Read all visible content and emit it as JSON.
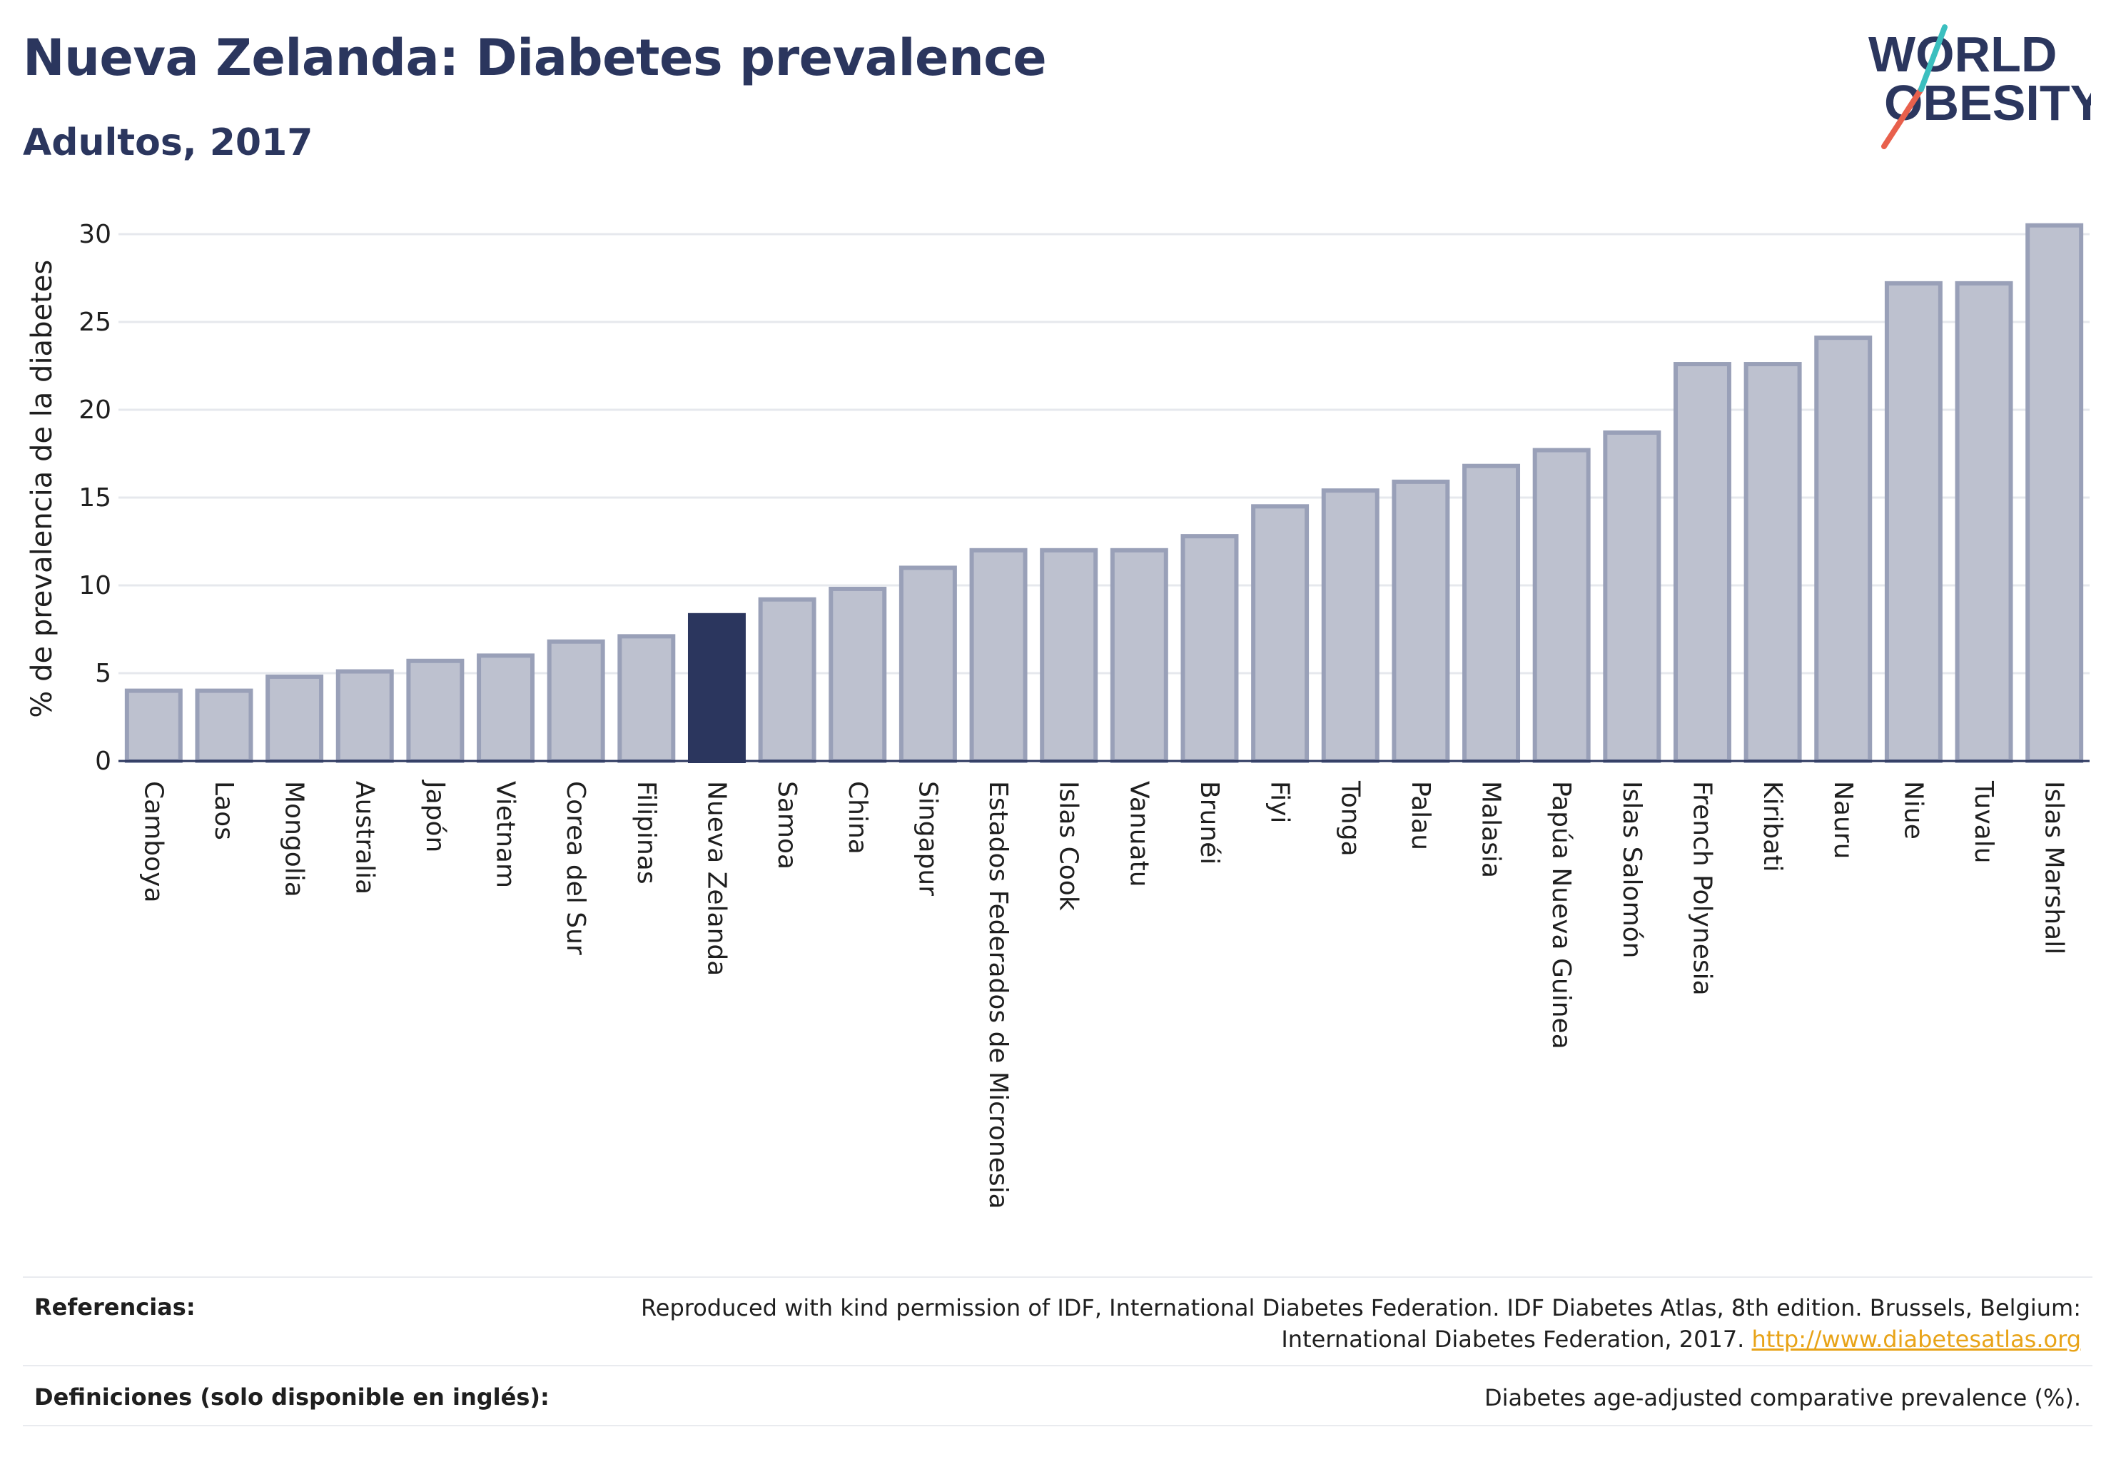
{
  "header": {
    "title": "Nueva Zelanda: Diabetes prevalence",
    "subtitle": "Adultos, 2017"
  },
  "logo": {
    "line1": "WORLD",
    "line2": "OBESITY",
    "colors": {
      "text": "#2b365e",
      "slash_red": "#e8604c",
      "slash_teal": "#3bbfbf"
    }
  },
  "chart_data": {
    "type": "bar",
    "ylabel": "% de prevalencia de la diabetes",
    "ylim": [
      0,
      31
    ],
    "yticks": [
      0,
      5,
      10,
      15,
      20,
      25,
      30
    ],
    "grid": true,
    "highlight": "Nueva Zelanda",
    "colors": {
      "bar": "#bdc1cf",
      "bar_border": "#99a0b8",
      "highlight": "#2b365e",
      "grid": "#e6e8ed"
    },
    "categories": [
      "Camboya",
      "Laos",
      "Mongolia",
      "Australia",
      "Japón",
      "Vietnam",
      "Corea del Sur",
      "Filipinas",
      "Nueva Zelanda",
      "Samoa",
      "China",
      "Singapur",
      "Estados Federados de Micronesia",
      "Islas Cook",
      "Vanuatu",
      "Brunéi",
      "Fiyi",
      "Tonga",
      "Palau",
      "Malasia",
      "Papúa Nueva Guinea",
      "Islas Salomón",
      "French Polynesia",
      "Kiribati",
      "Nauru",
      "Niue",
      "Tuvalu",
      "Islas Marshall"
    ],
    "values": [
      4.0,
      4.0,
      4.8,
      5.1,
      5.7,
      6.0,
      6.8,
      7.1,
      8.3,
      9.2,
      9.8,
      11.0,
      12.0,
      12.0,
      12.0,
      12.8,
      14.5,
      15.4,
      15.9,
      16.8,
      17.7,
      18.7,
      22.6,
      22.6,
      24.1,
      27.2,
      27.2,
      30.5
    ]
  },
  "footer": {
    "references_label": "Referencias:",
    "references_line1": "Reproduced with kind permission of IDF, International Diabetes Federation. IDF Diabetes Atlas, 8th edition. Brussels, Belgium:",
    "references_line2": "International Diabetes Federation, 2017.",
    "references_link": "http://www.diabetesatlas.org",
    "definitions_label": "Definiciones (solo disponible en inglés):",
    "definitions_text": "Diabetes age-adjusted comparative prevalence (%)."
  }
}
